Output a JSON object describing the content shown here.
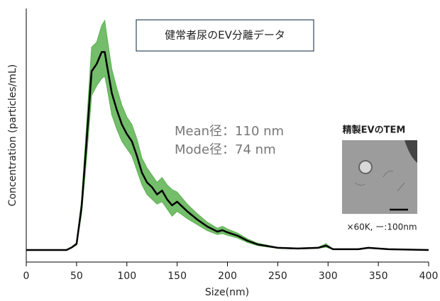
{
  "chart_data": {
    "type": "line",
    "title": "健常者尿のEV分離データ",
    "x_label": "Size(nm)",
    "y_label": "Concentration (particles/mL)",
    "annotations": [
      "Mean径：110 nm",
      "Mode径：74  nm"
    ],
    "inset_title": "精製EVのTEM",
    "inset_caption": "×60K, ー:100nm",
    "x": [
      0,
      40,
      45,
      50,
      55,
      60,
      65,
      70,
      75,
      78,
      80,
      85,
      90,
      95,
      100,
      105,
      110,
      115,
      120,
      125,
      130,
      135,
      140,
      145,
      150,
      160,
      170,
      180,
      190,
      195,
      200,
      210,
      220,
      230,
      250,
      270,
      290,
      298,
      305,
      330,
      340,
      360,
      400
    ],
    "series": [
      {
        "color": "#000000",
        "values": [
          0,
          0,
          1,
          2.5,
          18,
          45,
          74,
          77,
          82,
          82,
          77,
          65,
          58,
          52,
          48,
          45,
          39,
          32,
          28,
          26,
          23,
          24.6,
          21,
          18.5,
          20,
          16,
          12.6,
          9.7,
          7.6,
          8.2,
          7.3,
          5.9,
          3.8,
          2.3,
          0.9,
          0.6,
          0.9,
          1.8,
          0.3,
          0.3,
          0.9,
          0.3,
          0
        ]
      }
    ],
    "band_color": "#5cb150",
    "band_upper": [
      0,
      0,
      1.2,
      3,
      21,
      52,
      84,
      86,
      93,
      95,
      89,
      75,
      67,
      60,
      55,
      52,
      46,
      38,
      34,
      31,
      28,
      30,
      27,
      25,
      24,
      19,
      15,
      11.5,
      9,
      9.8,
      8.7,
      7,
      4.6,
      2.8,
      1.1,
      0.8,
      1.1,
      2.6,
      0.4,
      0.4,
      1.1,
      0.4,
      0
    ],
    "band_lower": [
      0,
      0,
      0.8,
      2,
      15,
      38,
      64,
      68,
      71,
      72,
      68,
      56,
      50,
      45,
      42,
      39,
      33,
      27,
      23,
      21,
      19,
      20,
      17,
      14,
      16,
      13,
      10.5,
      8,
      6.4,
      6.8,
      6.1,
      4.9,
      3.1,
      1.8,
      0.7,
      0.4,
      0.7,
      1.2,
      0.2,
      0.2,
      0.7,
      0.2,
      0
    ],
    "xlim": [
      0,
      400
    ],
    "xticks": [
      0,
      50,
      100,
      150,
      200,
      250,
      300,
      350,
      400
    ],
    "ylim": [
      -5,
      100
    ]
  }
}
